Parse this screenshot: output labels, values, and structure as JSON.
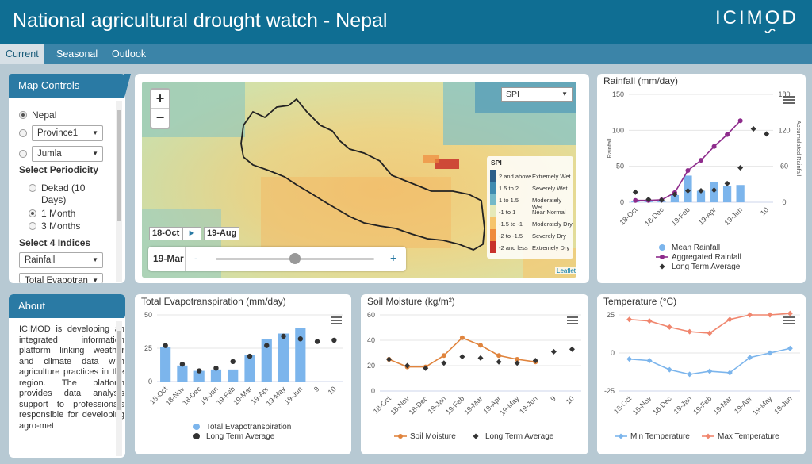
{
  "header": {
    "title": "National agricultural drought watch - Nepal",
    "logo": "ICIMOD"
  },
  "tabs": [
    {
      "label": "Current",
      "active": true
    },
    {
      "label": "Seasonal",
      "active": false
    },
    {
      "label": "Outlook",
      "active": false
    }
  ],
  "map_controls": {
    "title": "Map Controls",
    "region_options": [
      {
        "label": "Nepal",
        "selected": true,
        "type": "text"
      },
      {
        "label": "Province1",
        "selected": false,
        "type": "select"
      },
      {
        "label": "Jumla",
        "selected": false,
        "type": "select"
      }
    ],
    "periodicity_label": "Select Periodicity",
    "periodicity_options": [
      {
        "label": "Dekad (10",
        "label2": "Days)",
        "selected": false
      },
      {
        "label": "1 Month",
        "selected": true
      },
      {
        "label": "3 Months",
        "selected": false
      }
    ],
    "indices_label": "Select 4 Indices",
    "index_selects": [
      "Rainfall",
      "Total Evapotran"
    ]
  },
  "about": {
    "title": "About",
    "text": "ICIMOD is developing an integrated information platform linking weather and climate data with agriculture practices in the region. The platform provides data analysis support to professionals responsible for developing agro-met"
  },
  "map": {
    "layer_select": "SPI",
    "legend_title": "SPI",
    "legend": [
      {
        "range": "2 and above",
        "label": "Extremely Wet",
        "color": "#2c5f8a"
      },
      {
        "range": "1.5 to 2",
        "label": "Severely Wet",
        "color": "#3f8bb0"
      },
      {
        "range": "1 to 1.5",
        "label": "Moderately Wet",
        "color": "#74b9c9"
      },
      {
        "range": "-1 to 1",
        "label": "Near Normal",
        "color": "#e6e9b8"
      },
      {
        "range": "-1.5 to -1",
        "label": "Moderately Dry",
        "color": "#f6c46c"
      },
      {
        "range": "-2 to -1.5",
        "label": "Severely Dry",
        "color": "#ef8a3c"
      },
      {
        "range": "-2 and less",
        "label": "Extremely Dry",
        "color": "#c8312a"
      }
    ],
    "time_start": "18-Oct",
    "play_label": "►",
    "time_end": "19-Aug",
    "current_date": "19-Mar",
    "slider_minus": "-",
    "slider_plus": "+",
    "attribution": "Leaflet",
    "zoom_in": "+",
    "zoom_out": "−"
  },
  "charts": {
    "rainfall": {
      "title": "Rainfall (mm/day)",
      "ylabel": "Rainfall",
      "y2label": "Accumulated Rainfall",
      "legend": [
        "Mean Rainfall",
        "Aggregated Rainfall",
        "Long Term Average"
      ],
      "colors": {
        "mean": "#7cb5ec",
        "aggregated": "#8e2c8c",
        "lta": "#333333"
      }
    },
    "et": {
      "title": "Total Evapotranspiration (mm/day)",
      "legend": [
        "Total Evapotranspiration",
        "Long Term Average"
      ],
      "colors": {
        "bar": "#7cb5ec",
        "lta": "#333333"
      }
    },
    "soil": {
      "title": "Soil Moisture (kg/m²)",
      "legend": [
        "Soil Moisture",
        "Long Term Average"
      ],
      "colors": {
        "line": "#e0843d",
        "lta": "#333333"
      }
    },
    "temp": {
      "title": "Temperature (°C)",
      "legend": [
        "Min Temperature",
        "Max Temperature"
      ],
      "colors": {
        "min": "#7cb5ec",
        "max": "#f0866e"
      }
    }
  },
  "chart_data": [
    {
      "id": "rainfall",
      "type": "bar+line",
      "title": "Rainfall (mm/day)",
      "ylabel": "Rainfall",
      "y2label": "Accumulated Rainfall",
      "x": [
        "18-Oct",
        "18-Nov",
        "18-Dec",
        "19-Jan",
        "19-Feb",
        "19-Mar",
        "19-Apr",
        "19-May",
        "19-Jun",
        "9",
        "10"
      ],
      "tick_labels": [
        "18-Oct",
        "18-Dec",
        "19-Feb",
        "19-Apr",
        "19-Jun",
        "10"
      ],
      "ylim": [
        0,
        150
      ],
      "yticks": [
        0,
        50,
        100,
        150
      ],
      "y2lim": [
        0,
        180
      ],
      "y2ticks": [
        0,
        60,
        120,
        180
      ],
      "series": [
        {
          "name": "Mean Rainfall",
          "kind": "bar",
          "axis": "left",
          "values": [
            1,
            1,
            1,
            10,
            37,
            16,
            28,
            23,
            24,
            null,
            null
          ]
        },
        {
          "name": "Aggregated Rainfall",
          "kind": "line",
          "axis": "right",
          "values": [
            3,
            3,
            4,
            16,
            53,
            70,
            93,
            113,
            136,
            null,
            null
          ]
        },
        {
          "name": "Long Term Average",
          "kind": "point",
          "axis": "left",
          "values": [
            14,
            4,
            3,
            11,
            16,
            16,
            17,
            26,
            48,
            102,
            95
          ]
        }
      ]
    },
    {
      "id": "et",
      "type": "bar",
      "title": "Total Evapotranspiration (mm/day)",
      "x": [
        "18-Oct",
        "18-Nov",
        "18-Dec",
        "19-Jan",
        "19-Feb",
        "19-Mar",
        "19-Apr",
        "19-May",
        "19-Jun",
        "9",
        "10"
      ],
      "ylim": [
        0,
        50
      ],
      "yticks": [
        0,
        25,
        50
      ],
      "series": [
        {
          "name": "Total Evapotranspiration",
          "kind": "bar",
          "values": [
            26,
            12,
            8,
            9,
            9,
            20,
            32,
            36,
            40,
            null,
            null
          ]
        },
        {
          "name": "Long Term Average",
          "kind": "point",
          "values": [
            27,
            13,
            8,
            10,
            15,
            19,
            27,
            34,
            32,
            30,
            31
          ]
        }
      ]
    },
    {
      "id": "soil",
      "type": "line",
      "title": "Soil Moisture (kg/m²)",
      "x": [
        "18-Oct",
        "18-Nov",
        "18-Dec",
        "19-Jan",
        "19-Feb",
        "19-Mar",
        "19-Apr",
        "19-May",
        "19-Jun",
        "9",
        "10"
      ],
      "ylim": [
        0,
        60
      ],
      "yticks": [
        0,
        20,
        40,
        60
      ],
      "series": [
        {
          "name": "Soil Moisture",
          "kind": "line",
          "values": [
            25,
            19,
            19,
            28,
            42,
            36,
            28,
            25,
            23,
            null,
            null
          ]
        },
        {
          "name": "Long Term Average",
          "kind": "point",
          "values": [
            25,
            20,
            18,
            22,
            27,
            26,
            23,
            22,
            24,
            31,
            33
          ]
        }
      ]
    },
    {
      "id": "temp",
      "type": "line",
      "title": "Temperature (°C)",
      "x": [
        "18-Oct",
        "18-Nov",
        "18-Dec",
        "19-Jan",
        "19-Feb",
        "19-Mar",
        "19-Apr",
        "19-May",
        "19-Jun"
      ],
      "ylim": [
        -25,
        25
      ],
      "yticks": [
        -25,
        0,
        25
      ],
      "series": [
        {
          "name": "Min Temperature",
          "kind": "line",
          "values": [
            -4,
            -5,
            -11,
            -14,
            -12,
            -13,
            -3,
            0,
            3
          ]
        },
        {
          "name": "Max Temperature",
          "kind": "line",
          "values": [
            22,
            21,
            17,
            14,
            13,
            22,
            25,
            25,
            26
          ]
        }
      ]
    }
  ]
}
